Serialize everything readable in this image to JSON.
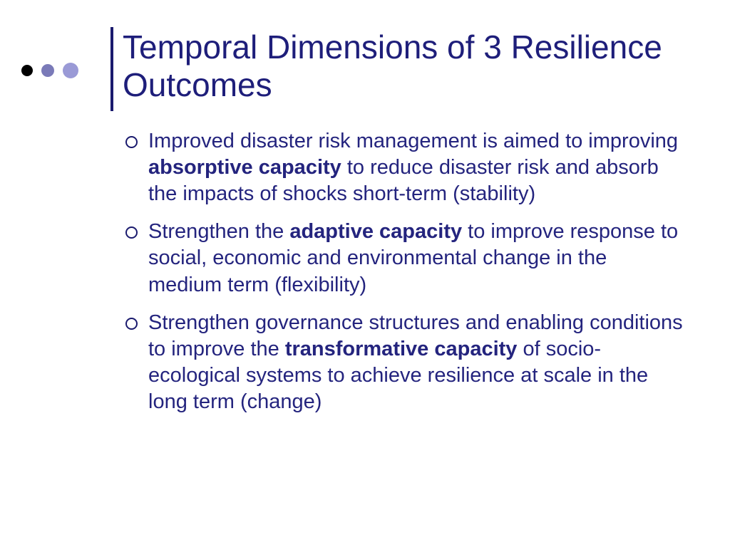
{
  "decor": {
    "dots": [
      {
        "size": 16,
        "color": "#000000"
      },
      {
        "size": 18,
        "color": "#7a7ab8"
      },
      {
        "size": 22,
        "color": "#9a9ad6"
      }
    ],
    "vline_color": "#1a1a6e"
  },
  "title": "Temporal Dimensions of 3 Resilience Outcomes",
  "bullets": [
    {
      "pre": "Improved disaster risk management is aimed to improving ",
      "bold": "absorptive capacity",
      "post": " to reduce disaster risk and absorb the impacts of shocks short-term (stability)"
    },
    {
      "pre": "Strengthen the ",
      "bold": "adaptive capacity",
      "post": " to improve response to social, economic and environmental change in the medium term (flexibility)"
    },
    {
      "pre": "Strengthen governance structures and enabling conditions to improve the ",
      "bold": "transformative capacity",
      "post": " of socio-ecological systems to achieve resilience at scale in the long term (change)"
    }
  ],
  "colors": {
    "title": "#1e1e7a",
    "body": "#24247e",
    "background": "#ffffff"
  },
  "typography": {
    "title_fontsize": 46,
    "body_fontsize": 29,
    "font_family": "Arial"
  }
}
